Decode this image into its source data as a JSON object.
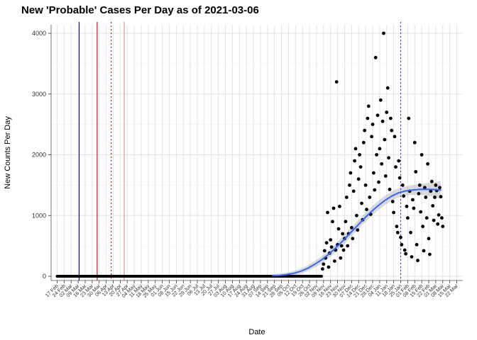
{
  "chart_data": {
    "type": "scatter",
    "title": "New 'Probable' Cases Per Day as of 2021-03-06",
    "xlabel": "Date",
    "ylabel": "New Counts Per Day",
    "x_tick_labels": [
      "17 Feb",
      "24 Feb",
      "02 Mar",
      "09 Mar",
      "16 Mar",
      "23 Mar",
      "30 Mar",
      "06 Apr",
      "13 Apr",
      "20 Apr",
      "27 Apr",
      "04 May",
      "11 May",
      "18 May",
      "25 May",
      "01 Jun",
      "08 Jun",
      "15 Jun",
      "22 Jun",
      "29 Jun",
      "06 Jul",
      "13 Jul",
      "20 Jul",
      "27 Jul",
      "03 Aug",
      "10 Aug",
      "17 Aug",
      "24 Aug",
      "31 Aug",
      "07 Sep",
      "14 Sep",
      "21 Sep",
      "28 Sep",
      "05 Oct",
      "12 Oct",
      "19 Oct",
      "26 Oct",
      "02 Nov",
      "09 Nov",
      "16 Nov",
      "23 Nov",
      "30 Nov",
      "07 Dec",
      "14 Dec",
      "21 Dec",
      "28 Dec",
      "04 Jan",
      "11 Jan",
      "18 Jan",
      "25 Jan",
      "01 Feb",
      "08 Feb",
      "15 Feb",
      "22 Feb",
      "01 Mar",
      "08 Mar",
      "15 Mar",
      "22 Mar"
    ],
    "x_tick_step_days": 7,
    "y_tick_labels": [
      "0",
      "1000",
      "2000",
      "3000",
      "4000"
    ],
    "y_ticks": [
      0,
      1000,
      2000,
      3000,
      4000
    ],
    "y_minor_ticks": [
      500,
      1500,
      2500,
      3500
    ],
    "ylim": [
      0,
      4140
    ],
    "grid": {
      "major_color": "#e3e3e3",
      "minor_color": "#f1f1f1"
    },
    "point_color": "#000000",
    "zero_run": {
      "start_day": 0,
      "end_day": 264,
      "value": 0
    },
    "points": [
      [
        265,
        120
      ],
      [
        266,
        200
      ],
      [
        267,
        420
      ],
      [
        268,
        300
      ],
      [
        269,
        550
      ],
      [
        270,
        1050
      ],
      [
        271,
        150
      ],
      [
        272,
        380
      ],
      [
        273,
        600
      ],
      [
        274,
        480
      ],
      [
        275,
        900
      ],
      [
        276,
        1120
      ],
      [
        277,
        250
      ],
      [
        278,
        430
      ],
      [
        279,
        3200
      ],
      [
        280,
        520
      ],
      [
        281,
        780
      ],
      [
        282,
        1150
      ],
      [
        283,
        300
      ],
      [
        284,
        500
      ],
      [
        285,
        700
      ],
      [
        286,
        430
      ],
      [
        287,
        620
      ],
      [
        288,
        900
      ],
      [
        289,
        1300
      ],
      [
        290,
        500
      ],
      [
        291,
        700
      ],
      [
        292,
        1500
      ],
      [
        293,
        1700
      ],
      [
        294,
        800
      ],
      [
        295,
        620
      ],
      [
        296,
        1400
      ],
      [
        297,
        1900
      ],
      [
        298,
        2100
      ],
      [
        299,
        1000
      ],
      [
        300,
        760
      ],
      [
        301,
        1600
      ],
      [
        302,
        2000
      ],
      [
        303,
        1800
      ],
      [
        304,
        1200
      ],
      [
        305,
        930
      ],
      [
        306,
        2200
      ],
      [
        307,
        2400
      ],
      [
        308,
        1500
      ],
      [
        309,
        1100
      ],
      [
        310,
        2600
      ],
      [
        311,
        2800
      ],
      [
        312,
        1300
      ],
      [
        313,
        1020
      ],
      [
        314,
        2300
      ],
      [
        315,
        2500
      ],
      [
        316,
        1700
      ],
      [
        317,
        1420
      ],
      [
        318,
        3600
      ],
      [
        319,
        2000
      ],
      [
        320,
        2650
      ],
      [
        321,
        1550
      ],
      [
        322,
        2100
      ],
      [
        323,
        2900
      ],
      [
        324,
        1850
      ],
      [
        325,
        2550
      ],
      [
        326,
        4000
      ],
      [
        327,
        2250
      ],
      [
        328,
        1650
      ],
      [
        329,
        2700
      ],
      [
        330,
        3100
      ],
      [
        331,
        1950
      ],
      [
        332,
        1430
      ],
      [
        333,
        2600
      ],
      [
        334,
        2400
      ],
      [
        335,
        1230
      ],
      [
        336,
        1050
      ],
      [
        337,
        2300
      ],
      [
        338,
        1800
      ],
      [
        339,
        820
      ],
      [
        340,
        720
      ],
      [
        341,
        1900
      ],
      [
        342,
        1620
      ],
      [
        343,
        640
      ],
      [
        344,
        520
      ],
      [
        345,
        1500
      ],
      [
        346,
        1320
      ],
      [
        347,
        430
      ],
      [
        348,
        370
      ],
      [
        349,
        1150
      ],
      [
        350,
        960
      ],
      [
        351,
        2600
      ],
      [
        352,
        1400
      ],
      [
        353,
        720
      ],
      [
        354,
        320
      ],
      [
        355,
        1260
      ],
      [
        356,
        1120
      ],
      [
        357,
        2200
      ],
      [
        358,
        1720
      ],
      [
        359,
        520
      ],
      [
        360,
        260
      ],
      [
        361,
        1360
      ],
      [
        362,
        1500
      ],
      [
        363,
        1060
      ],
      [
        364,
        2000
      ],
      [
        365,
        820
      ],
      [
        366,
        420
      ],
      [
        367,
        1460
      ],
      [
        368,
        1300
      ],
      [
        369,
        960
      ],
      [
        370,
        1850
      ],
      [
        371,
        620
      ],
      [
        372,
        360
      ],
      [
        373,
        1400
      ],
      [
        374,
        1560
      ],
      [
        375,
        1160
      ],
      [
        376,
        920
      ],
      [
        377,
        1300
      ],
      [
        378,
        1500
      ],
      [
        379,
        1410
      ],
      [
        380,
        860
      ],
      [
        381,
        1010
      ],
      [
        382,
        1460
      ],
      [
        383,
        1310
      ],
      [
        384,
        960
      ],
      [
        385,
        820
      ]
    ],
    "smooth_line": {
      "color": "#3366ff",
      "points": [
        [
          215,
          8
        ],
        [
          222,
          15
        ],
        [
          229,
          28
        ],
        [
          236,
          48
        ],
        [
          243,
          80
        ],
        [
          250,
          130
        ],
        [
          257,
          195
        ],
        [
          264,
          270
        ],
        [
          271,
          360
        ],
        [
          278,
          465
        ],
        [
          285,
          580
        ],
        [
          292,
          700
        ],
        [
          299,
          820
        ],
        [
          306,
          940
        ],
        [
          313,
          1055
        ],
        [
          320,
          1155
        ],
        [
          327,
          1245
        ],
        [
          334,
          1320
        ],
        [
          341,
          1375
        ],
        [
          348,
          1405
        ],
        [
          355,
          1420
        ],
        [
          362,
          1430
        ],
        [
          369,
          1432
        ],
        [
          376,
          1428
        ],
        [
          383,
          1420
        ]
      ]
    },
    "band": {
      "color": "#999999",
      "opacity": 0.35,
      "points": [
        [
          215,
          -15,
          35
        ],
        [
          222,
          -10,
          45
        ],
        [
          229,
          0,
          60
        ],
        [
          236,
          15,
          85
        ],
        [
          243,
          40,
          125
        ],
        [
          250,
          85,
          180
        ],
        [
          257,
          140,
          250
        ],
        [
          264,
          210,
          330
        ],
        [
          271,
          295,
          425
        ],
        [
          278,
          395,
          535
        ],
        [
          285,
          505,
          655
        ],
        [
          292,
          625,
          775
        ],
        [
          299,
          745,
          895
        ],
        [
          306,
          865,
          1015
        ],
        [
          313,
          980,
          1130
        ],
        [
          320,
          1080,
          1230
        ],
        [
          327,
          1170,
          1320
        ],
        [
          334,
          1245,
          1395
        ],
        [
          341,
          1300,
          1450
        ],
        [
          348,
          1330,
          1480
        ],
        [
          355,
          1340,
          1500
        ],
        [
          362,
          1340,
          1520
        ],
        [
          369,
          1330,
          1535
        ],
        [
          376,
          1310,
          1545
        ],
        [
          383,
          1270,
          1570
        ]
      ]
    },
    "vlines": [
      {
        "day": 22,
        "color": "#000080",
        "style": "solid"
      },
      {
        "day": 40,
        "color": "#cc0000",
        "style": "solid"
      },
      {
        "day": 54,
        "color": "#cc0000",
        "style": "dotted"
      },
      {
        "day": 67,
        "color": "#dd8888",
        "style": "solid"
      },
      {
        "day": 343,
        "color": "#3333cc",
        "style": "dotted"
      }
    ]
  }
}
